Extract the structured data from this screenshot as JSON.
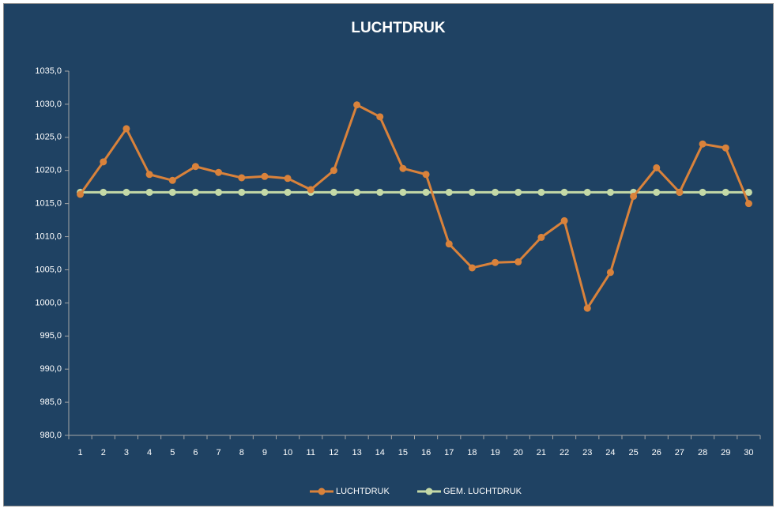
{
  "chart_data": {
    "type": "line",
    "title": "LUCHTDRUK",
    "categories": [
      "1",
      "2",
      "3",
      "4",
      "5",
      "6",
      "7",
      "8",
      "9",
      "10",
      "11",
      "12",
      "13",
      "14",
      "15",
      "16",
      "17",
      "18",
      "19",
      "20",
      "21",
      "22",
      "23",
      "24",
      "25",
      "26",
      "27",
      "28",
      "29",
      "30"
    ],
    "series": [
      {
        "name": "LUCHTDRUK",
        "color": "#d9823b",
        "values": [
          1016.4,
          1021.3,
          1026.3,
          1019.4,
          1018.5,
          1020.6,
          1019.7,
          1018.9,
          1019.1,
          1018.8,
          1017.1,
          1020.0,
          1029.9,
          1028.1,
          1020.3,
          1019.4,
          1008.9,
          1005.3,
          1006.1,
          1006.2,
          1009.9,
          1012.4,
          999.2,
          1004.6,
          1016.1,
          1020.4,
          1016.7,
          1024.0,
          1023.4,
          1015.0
        ]
      },
      {
        "name": "GEM. LUCHTDRUK",
        "color": "#c4d9a7",
        "values": [
          1016.7,
          1016.7,
          1016.7,
          1016.7,
          1016.7,
          1016.7,
          1016.7,
          1016.7,
          1016.7,
          1016.7,
          1016.7,
          1016.7,
          1016.7,
          1016.7,
          1016.7,
          1016.7,
          1016.7,
          1016.7,
          1016.7,
          1016.7,
          1016.7,
          1016.7,
          1016.7,
          1016.7,
          1016.7,
          1016.7,
          1016.7,
          1016.7,
          1016.7,
          1016.7
        ]
      }
    ],
    "ylim": [
      980,
      1035
    ],
    "yticks": [
      {
        "value": 980,
        "label": "980,0"
      },
      {
        "value": 985,
        "label": "985,0"
      },
      {
        "value": 990,
        "label": "990,0"
      },
      {
        "value": 995,
        "label": "995,0"
      },
      {
        "value": 1000,
        "label": "1000,0"
      },
      {
        "value": 1005,
        "label": "1005,0"
      },
      {
        "value": 1010,
        "label": "1010,0"
      },
      {
        "value": 1015,
        "label": "1015,0"
      },
      {
        "value": 1020,
        "label": "1020,0"
      },
      {
        "value": 1025,
        "label": "1025,0"
      },
      {
        "value": 1030,
        "label": "1030,0"
      },
      {
        "value": 1035,
        "label": "1035,0"
      }
    ],
    "grid": false,
    "legend": "bottom"
  }
}
